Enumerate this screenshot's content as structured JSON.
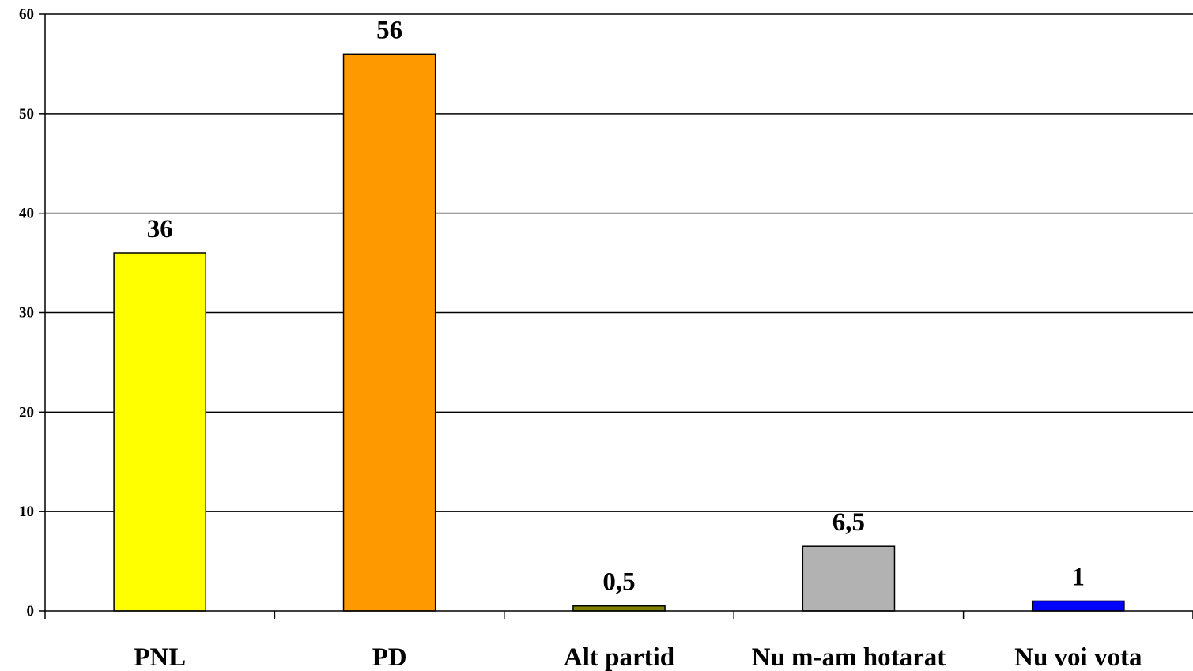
{
  "chart_data": {
    "type": "bar",
    "categories": [
      "PNL",
      "PD",
      "Alt partid",
      "Nu m-am hotarat",
      "Nu voi vota"
    ],
    "values": [
      36,
      56,
      0.5,
      6.5,
      1
    ],
    "value_labels": [
      "36",
      "56",
      "0,5",
      "6,5",
      "1"
    ],
    "colors": [
      "#ffff00",
      "#ff9900",
      "#808000",
      "#b2b2b2",
      "#0000ff"
    ],
    "ylim": [
      0,
      60
    ],
    "yticks": [
      0,
      10,
      20,
      30,
      40,
      50,
      60
    ],
    "grid": true,
    "title": "",
    "xlabel": "",
    "ylabel": ""
  }
}
